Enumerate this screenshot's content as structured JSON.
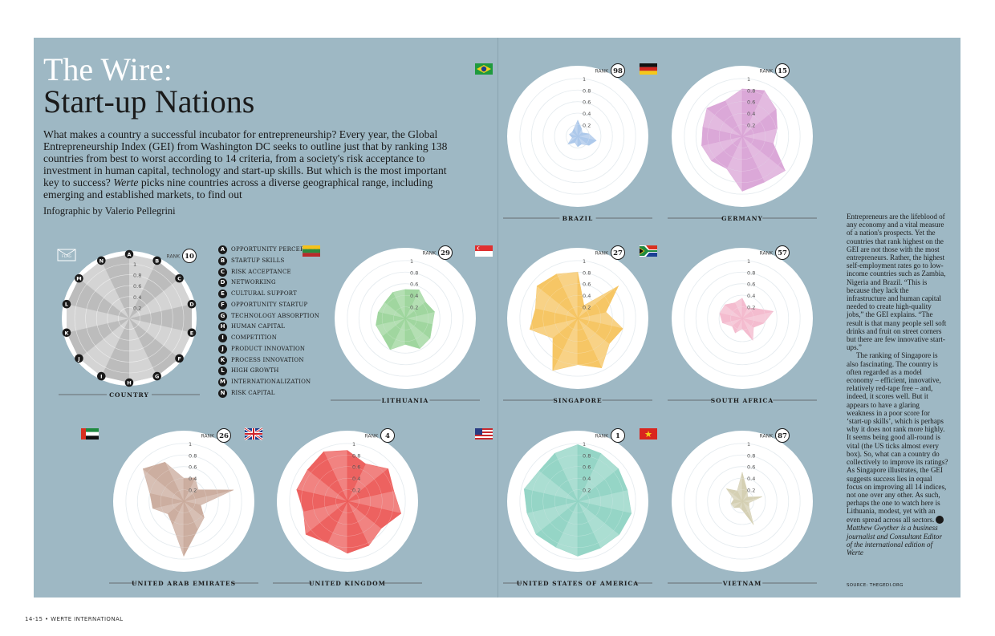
{
  "header": {
    "title_line1": "The Wire:",
    "title_line2": "Start-up Nations",
    "intro_part1": "What makes a country a successful incubator for entrepreneurship? Every year, the Global Entrepreneurship Index (GEI) from Washington DC seeks to outline just that by ranking 138 countries from best to worst according to 14 criteria, from a society's risk acceptance to investment in human capital, technology and start-up skills. But which is the most important key to success? ",
    "intro_em": "Werte",
    "intro_part2": " picks nine countries across a diverse geographical range, including emerging and established markets, to find out",
    "credit": "Infographic by Valerio Pellegrini"
  },
  "legend": [
    {
      "letter": "A",
      "label": "OPPORTUNITY PERCEPTION"
    },
    {
      "letter": "B",
      "label": "STARTUP SKILLS"
    },
    {
      "letter": "C",
      "label": "RISK ACCEPTANCE"
    },
    {
      "letter": "D",
      "label": "NETWORKING"
    },
    {
      "letter": "E",
      "label": "CULTURAL SUPPORT"
    },
    {
      "letter": "F",
      "label": "OPPORTUNITY STARTUP"
    },
    {
      "letter": "G",
      "label": "TECHNOLOGY ABSORPTION"
    },
    {
      "letter": "H",
      "label": "HUMAN CAPITAL"
    },
    {
      "letter": "I",
      "label": "COMPETITION"
    },
    {
      "letter": "J",
      "label": "PRODUCT INNOVATION"
    },
    {
      "letter": "K",
      "label": "PROCESS INNOVATION"
    },
    {
      "letter": "L",
      "label": "HIGH GROWTH"
    },
    {
      "letter": "M",
      "label": "INTERNATIONALIZATION"
    },
    {
      "letter": "N",
      "label": "RISK CAPITAL"
    }
  ],
  "sidebar": {
    "p1": "Entrepreneurs are the lifeblood of any economy and a vital measure of a nation's prospects. Yet the countries that rank highest on the GEI are not those with the most entrepreneurs. Rather, the highest self-employment rates go to low-income countries such as Zambia, Nigeria and Brazil. “This is because they lack the infrastructure and human capital needed to create high-quality jobs,” the GEI explains. “The result is that many people sell soft drinks and fruit on street corners but there are few innovative start-ups.”",
    "p2": "The ranking of Singapore is also fascinating. The country is often regarded as a model economy – efficient, innovative, relatively red-tape free – and, indeed, it scores well. But it appears to have a glaring weakness in a poor score for ‘start-up skills’, which is perhaps why it does not rank more highly. It seems being good all-round is vital (the US ticks almost every box). So, what can a country do collectively to improve its ratings? As Singapore illustrates, the GEI suggests success lies in equal focus on improving all 14 indices, not one over any other. As such, perhaps the one to watch here is Lithuania, modest, yet with an even spread across all sectors.",
    "byline": "Matthew Gwyther is a business journalist and Consultant Editor of the international edition of Werte",
    "source": "SOURCE: THEGEDI.ORG"
  },
  "footer": "14-15 • WERTE INTERNATIONAL",
  "chart_data": {
    "type": "radar",
    "axes": [
      "A",
      "B",
      "C",
      "D",
      "E",
      "F",
      "G",
      "H",
      "I",
      "J",
      "K",
      "L",
      "M",
      "N"
    ],
    "range": [
      0,
      1
    ],
    "tick_labels": [
      "0.2",
      "0.4",
      "0.6",
      "0.8",
      "1"
    ],
    "rank_label": "RANK",
    "key": {
      "name": "COUNTRY",
      "rank": "10",
      "flag_label": "FLAG"
    },
    "countries": [
      {
        "name": "BRAZIL",
        "rank": "98",
        "color": "#a9c6ea",
        "flag": "brazil",
        "values": [
          0.28,
          0.15,
          0.1,
          0.2,
          0.33,
          0.25,
          0.15,
          0.18,
          0.12,
          0.22,
          0.1,
          0.15,
          0.12,
          0.15
        ]
      },
      {
        "name": "GERMANY",
        "rank": "15",
        "color": "#d9a3d6",
        "flag": "germany",
        "values": [
          0.82,
          0.88,
          0.75,
          0.62,
          0.55,
          0.95,
          0.88,
          0.95,
          0.62,
          0.68,
          0.72,
          0.7,
          0.78,
          0.68
        ]
      },
      {
        "name": "LITHUANIA",
        "rank": "29",
        "color": "#9bd49a",
        "flag": "lithuania",
        "values": [
          0.5,
          0.55,
          0.45,
          0.52,
          0.48,
          0.55,
          0.58,
          0.45,
          0.6,
          0.5,
          0.52,
          0.48,
          0.45,
          0.5
        ]
      },
      {
        "name": "SINGAPORE",
        "rank": "27",
        "color": "#f5c35d",
        "flag": "singapore",
        "values": [
          0.8,
          0.25,
          0.9,
          0.5,
          0.8,
          0.7,
          0.95,
          0.8,
          1.0,
          0.55,
          0.85,
          0.75,
          0.9,
          0.85
        ]
      },
      {
        "name": "SOUTH AFRICA",
        "rank": "57",
        "color": "#f3b8cc",
        "flag": "southafrica",
        "values": [
          0.35,
          0.2,
          0.28,
          0.55,
          0.38,
          0.25,
          0.42,
          0.18,
          0.28,
          0.22,
          0.35,
          0.4,
          0.38,
          0.3
        ]
      },
      {
        "name": "UNITED ARAB EMIRATES",
        "rank": "26",
        "color": "#c9aa9b",
        "flag": "uae",
        "values": [
          0.4,
          0.45,
          0.32,
          0.88,
          0.3,
          0.45,
          0.55,
          0.95,
          0.45,
          0.35,
          0.55,
          0.6,
          0.9,
          0.75
        ]
      },
      {
        "name": "UNITED KINGDOM",
        "rank": "4",
        "color": "#ec5a57",
        "flag": "uk",
        "values": [
          0.88,
          0.72,
          0.9,
          0.82,
          0.95,
          0.75,
          0.85,
          0.9,
          0.8,
          0.92,
          0.78,
          0.9,
          0.88,
          0.95
        ]
      },
      {
        "name": "UNITED STATES OF AMERICA",
        "rank": "1",
        "color": "#8fd3c3",
        "flag": "usa",
        "values": [
          0.98,
          0.92,
          0.9,
          0.88,
          0.95,
          0.92,
          0.9,
          0.95,
          0.88,
          0.92,
          0.9,
          0.95,
          0.85,
          0.92
        ]
      },
      {
        "name": "VIETNAM",
        "rank": "87",
        "color": "#d3ceb0",
        "flag": "vietnam",
        "values": [
          0.5,
          0.2,
          0.12,
          0.35,
          0.12,
          0.15,
          0.45,
          0.15,
          0.12,
          0.18,
          0.2,
          0.15,
          0.35,
          0.2
        ]
      }
    ]
  }
}
